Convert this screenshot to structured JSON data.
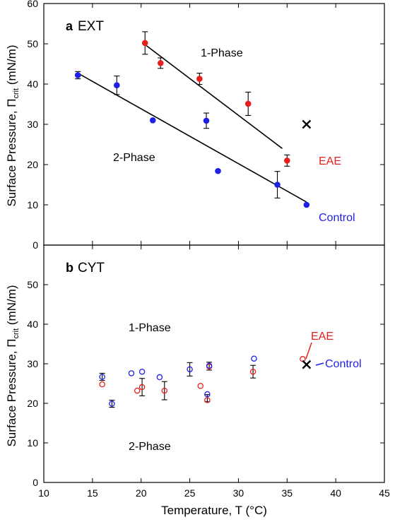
{
  "xlabel": "Temperature, T (°C)",
  "x_ticks": [
    10,
    15,
    20,
    25,
    30,
    35,
    40,
    45
  ],
  "y_ticks": [
    0,
    10,
    20,
    30,
    40,
    50,
    60
  ],
  "colors": {
    "eae": "#e8201d",
    "control": "#1f1fe6",
    "black": "#000000"
  },
  "chart_data": [
    {
      "type": "scatter",
      "panel": "a",
      "panel_title": "EXT",
      "ylabel": "Surface Pressure, Π",
      "ylabel_sub": "crit",
      "ylabel_unit": " (mN/m)",
      "xlim": [
        10,
        45
      ],
      "ylim": [
        0,
        60
      ],
      "region_labels": [
        "1-Phase",
        "2-Phase"
      ],
      "series": [
        {
          "name": "EAE",
          "marker": "filled-circle",
          "points": [
            {
              "x": 20.4,
              "y": 50.2,
              "err": 2.8
            },
            {
              "x": 22.0,
              "y": 45.2,
              "err": 1.3
            },
            {
              "x": 26.0,
              "y": 41.3,
              "err": 1.4
            },
            {
              "x": 31.0,
              "y": 35.1,
              "err": 2.9
            },
            {
              "x": 35.0,
              "y": 21.0,
              "err": 1.4
            }
          ],
          "fit": [
            [
              20.4,
              49.8
            ],
            [
              34.5,
              24.0
            ]
          ]
        },
        {
          "name": "Control",
          "marker": "filled-circle",
          "points": [
            {
              "x": 13.5,
              "y": 42.2,
              "err": 0.9
            },
            {
              "x": 17.5,
              "y": 39.7,
              "err": 2.3
            },
            {
              "x": 21.2,
              "y": 31.0,
              "err": 0
            },
            {
              "x": 26.7,
              "y": 30.9,
              "err": 1.9
            },
            {
              "x": 27.9,
              "y": 18.4,
              "err": 0
            },
            {
              "x": 34.0,
              "y": 15.0,
              "err": 3.3
            },
            {
              "x": 37.0,
              "y": 10.0,
              "err": 0
            }
          ],
          "fit": [
            [
              13.5,
              42.7
            ],
            [
              37.0,
              10.7
            ]
          ]
        }
      ],
      "cross_markers": [
        {
          "x": 37.0,
          "y": 30.0
        }
      ]
    },
    {
      "type": "scatter",
      "panel": "b",
      "panel_title": "CYT",
      "ylabel": "Surface Pressure, Π",
      "ylabel_sub": "crit",
      "ylabel_unit": " (mN/m)",
      "xlim": [
        10,
        45
      ],
      "ylim": [
        0,
        60
      ],
      "region_labels": [
        "1-Phase",
        "2-Phase"
      ],
      "series": [
        {
          "name": "EAE",
          "marker": "open-circle",
          "points": [
            {
              "x": 16.0,
              "y": 24.8
            },
            {
              "x": 19.6,
              "y": 23.2
            },
            {
              "x": 20.1,
              "y": 24.1
            },
            {
              "x": 22.4,
              "y": 23.2
            },
            {
              "x": 26.1,
              "y": 24.4
            },
            {
              "x": 26.8,
              "y": 20.8
            },
            {
              "x": 27.0,
              "y": 29.3
            },
            {
              "x": 31.5,
              "y": 28.0
            },
            {
              "x": 36.6,
              "y": 31.2
            }
          ]
        },
        {
          "name": "Control",
          "marker": "open-circle",
          "points": [
            {
              "x": 16.0,
              "y": 26.7
            },
            {
              "x": 17.0,
              "y": 19.9
            },
            {
              "x": 19.0,
              "y": 27.6
            },
            {
              "x": 20.1,
              "y": 28.0
            },
            {
              "x": 21.9,
              "y": 26.6
            },
            {
              "x": 25.0,
              "y": 28.6
            },
            {
              "x": 26.8,
              "y": 22.3
            },
            {
              "x": 27.0,
              "y": 29.5
            },
            {
              "x": 31.6,
              "y": 31.3
            }
          ]
        }
      ],
      "error_bars": [
        {
          "x": 16.0,
          "y": 26.7,
          "err": 0.9
        },
        {
          "x": 17.0,
          "y": 19.9,
          "err": 0.9
        },
        {
          "x": 20.1,
          "y": 24.1,
          "err": 2.2
        },
        {
          "x": 22.4,
          "y": 23.2,
          "err": 2.3
        },
        {
          "x": 25.0,
          "y": 28.6,
          "err": 1.7
        },
        {
          "x": 26.8,
          "y": 21.3,
          "err": 0.9
        },
        {
          "x": 27.0,
          "y": 29.4,
          "err": 1.0
        },
        {
          "x": 31.5,
          "y": 28.0,
          "err": 1.6
        }
      ],
      "cross_markers": [
        {
          "x": 37.0,
          "y": 29.8
        }
      ]
    }
  ]
}
